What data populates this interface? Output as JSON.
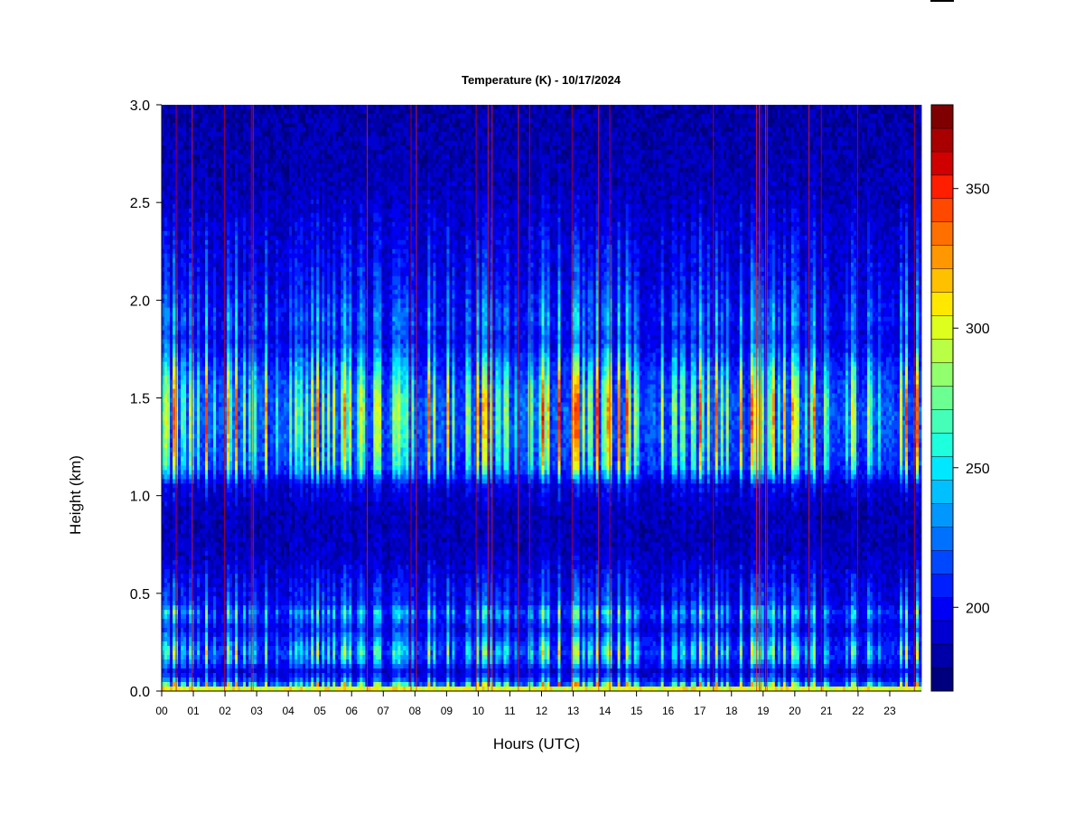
{
  "chart_data": {
    "type": "heatmap",
    "title": "Temperature (K) - 10/17/2024",
    "xlabel": "Hours (UTC)",
    "ylabel": "Height (km)",
    "x_tick_labels": [
      "00",
      "01",
      "02",
      "03",
      "04",
      "05",
      "06",
      "07",
      "08",
      "09",
      "10",
      "11",
      "12",
      "13",
      "14",
      "15",
      "16",
      "17",
      "18",
      "19",
      "20",
      "21",
      "22",
      "23"
    ],
    "x_range_hours": [
      0,
      24
    ],
    "y_ticks": [
      0.0,
      0.5,
      1.0,
      1.5,
      2.0,
      2.5,
      3.0
    ],
    "y_tick_labels": [
      "0.0",
      "0.5",
      "1.0",
      "1.5",
      "2.0",
      "2.5",
      "3.0"
    ],
    "ylim": [
      0.0,
      3.0
    ],
    "colorbar": {
      "label": "",
      "range": [
        170,
        380
      ],
      "ticks": [
        200,
        250,
        300,
        350
      ],
      "tick_labels": [
        "200",
        "250",
        "300",
        "350"
      ],
      "colors": [
        "#00007f",
        "#0000a8",
        "#0000d0",
        "#0000f5",
        "#001fff",
        "#0048ff",
        "#0070ff",
        "#0098ff",
        "#00c0ff",
        "#00e8ff",
        "#1effde",
        "#45ffb8",
        "#6cff92",
        "#92ff6c",
        "#b8ff45",
        "#deff1e",
        "#ffe800",
        "#ffc000",
        "#ff9800",
        "#ff7000",
        "#ff4800",
        "#ff1f00",
        "#d00000",
        "#a80000",
        "#7f0000"
      ]
    },
    "height_profile": [
      {
        "h": 0.0,
        "t": 305
      },
      {
        "h": 0.02,
        "t": 262
      },
      {
        "h": 0.06,
        "t": 212
      },
      {
        "h": 0.1,
        "t": 196
      },
      {
        "h": 0.15,
        "t": 222
      },
      {
        "h": 0.2,
        "t": 236
      },
      {
        "h": 0.25,
        "t": 222
      },
      {
        "h": 0.32,
        "t": 202
      },
      {
        "h": 0.4,
        "t": 228
      },
      {
        "h": 0.45,
        "t": 206
      },
      {
        "h": 0.55,
        "t": 200
      },
      {
        "h": 0.7,
        "t": 188
      },
      {
        "h": 0.9,
        "t": 186
      },
      {
        "h": 1.05,
        "t": 196
      },
      {
        "h": 1.15,
        "t": 236
      },
      {
        "h": 1.3,
        "t": 248
      },
      {
        "h": 1.45,
        "t": 252
      },
      {
        "h": 1.6,
        "t": 238
      },
      {
        "h": 1.8,
        "t": 206
      },
      {
        "h": 1.9,
        "t": 214
      },
      {
        "h": 2.1,
        "t": 202
      },
      {
        "h": 2.3,
        "t": 196
      },
      {
        "h": 2.6,
        "t": 186
      },
      {
        "h": 3.0,
        "t": 182
      }
    ]
  }
}
